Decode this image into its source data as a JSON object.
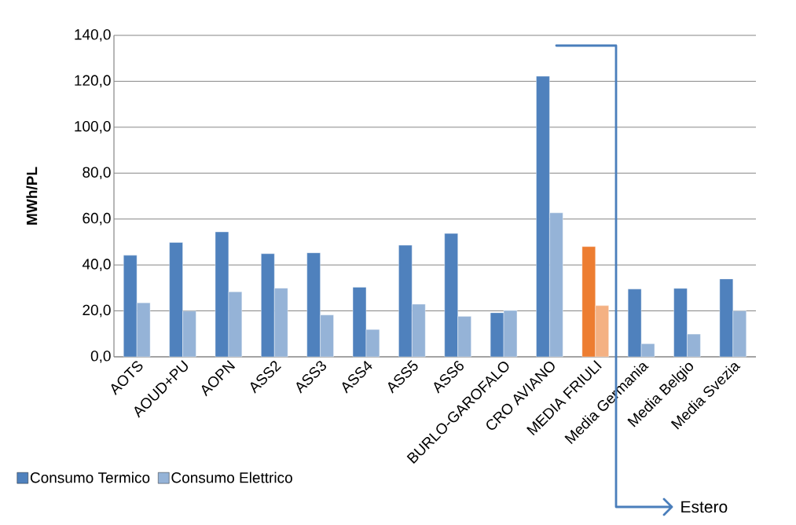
{
  "chart_data": {
    "type": "bar",
    "categories": [
      "AOTS",
      "AOUD+PU",
      "AOPN",
      "ASS2",
      "ASS3",
      "ASS4",
      "ASS5",
      "ASS6",
      "BURLO-GAROFALO",
      "CRO AVIANO",
      "MEDIA FRIULI",
      "Media Germania",
      "Media Belgio",
      "Media Svezia"
    ],
    "series": [
      {
        "name": "Consumo Termico",
        "color": "#4f81bd",
        "colors": [
          "#4f81bd",
          "#4f81bd",
          "#4f81bd",
          "#4f81bd",
          "#4f81bd",
          "#4f81bd",
          "#4f81bd",
          "#4f81bd",
          "#4f81bd",
          "#4f81bd",
          "#ed7d31",
          "#4f81bd",
          "#4f81bd",
          "#4f81bd"
        ],
        "values": [
          44.2,
          49.8,
          54.4,
          44.9,
          45.3,
          30.3,
          48.6,
          53.7,
          19.2,
          122.2,
          48.0,
          29.5,
          29.8,
          33.9
        ]
      },
      {
        "name": "Consumo Elettrico",
        "color": "#95b3d7",
        "colors": [
          "#95b3d7",
          "#95b3d7",
          "#95b3d7",
          "#95b3d7",
          "#95b3d7",
          "#95b3d7",
          "#95b3d7",
          "#95b3d7",
          "#95b3d7",
          "#95b3d7",
          "#f4b183",
          "#95b3d7",
          "#95b3d7",
          "#95b3d7"
        ],
        "values": [
          23.5,
          19.9,
          28.3,
          29.9,
          18.2,
          11.9,
          22.9,
          17.6,
          20.2,
          62.7,
          22.3,
          5.7,
          9.9,
          20.0
        ]
      }
    ],
    "ylabel": "MWh/PL",
    "ylim": [
      0,
      140
    ],
    "yticks": [
      {
        "value": 0,
        "label": "0,0"
      },
      {
        "value": 20,
        "label": "20,0"
      },
      {
        "value": 40,
        "label": "40,0"
      },
      {
        "value": 60,
        "label": "60,0"
      },
      {
        "value": 80,
        "label": "80,0"
      },
      {
        "value": 100,
        "label": "100,0"
      },
      {
        "value": 120,
        "label": "120,0"
      },
      {
        "value": 140,
        "label": "140,0"
      }
    ],
    "grid": "y",
    "legend": "bottom left",
    "annotations": [
      "Estero"
    ]
  }
}
